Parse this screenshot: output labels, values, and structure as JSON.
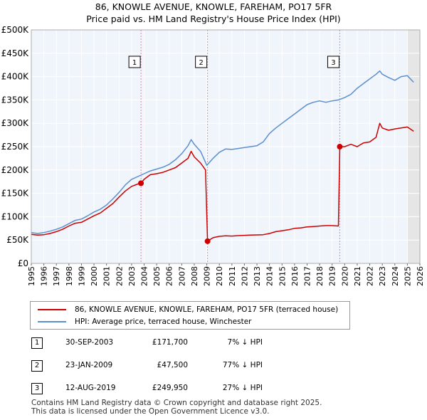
{
  "title": {
    "line1": "86, KNOWLE AVENUE, KNOWLE, FAREHAM, PO17 5FR",
    "line2": "Price paid vs. HM Land Registry's House Price Index (HPI)"
  },
  "chart_data": {
    "type": "line",
    "title": "86, KNOWLE AVENUE, KNOWLE, FAREHAM, PO17 5FR — Price paid vs. HM Land Registry's House Price Index (HPI)",
    "xlabel": "",
    "ylabel": "",
    "xlim": [
      1995,
      2026
    ],
    "ylim": [
      0,
      500000
    ],
    "grid": true,
    "y_ticks": [
      0,
      50000,
      100000,
      150000,
      200000,
      250000,
      300000,
      350000,
      400000,
      450000,
      500000
    ],
    "y_tick_labels": [
      "£0",
      "£50K",
      "£100K",
      "£150K",
      "£200K",
      "£250K",
      "£300K",
      "£350K",
      "£400K",
      "£450K",
      "£500K"
    ],
    "x_ticks": [
      1995,
      1996,
      1997,
      1998,
      1999,
      2000,
      2001,
      2002,
      2003,
      2004,
      2005,
      2006,
      2007,
      2008,
      2009,
      2010,
      2011,
      2012,
      2013,
      2014,
      2015,
      2016,
      2017,
      2018,
      2019,
      2020,
      2021,
      2022,
      2023,
      2024,
      2025,
      2026
    ],
    "x_tick_labels": [
      "1995",
      "1996",
      "1997",
      "1998",
      "1999",
      "2000",
      "2001",
      "2002",
      "2003",
      "2004",
      "2005",
      "2006",
      "2007",
      "2008",
      "2009",
      "2010",
      "2011",
      "2012",
      "2013",
      "2014",
      "2015",
      "2016",
      "2017",
      "2018",
      "2019",
      "2020",
      "2021",
      "2022",
      "2023",
      "2024",
      "2025",
      "2026"
    ],
    "series": [
      {
        "name": "86, KNOWLE AVENUE, KNOWLE, FAREHAM, PO17 5FR (terraced house)",
        "color": "#cc0000",
        "x": [
          1995.0,
          1995.5,
          1996.0,
          1996.5,
          1997.0,
          1997.5,
          1998.0,
          1998.5,
          1999.0,
          1999.5,
          2000.0,
          2000.5,
          2001.0,
          2001.5,
          2002.0,
          2002.5,
          2003.0,
          2003.5,
          2003.75,
          2004.0,
          2004.5,
          2005.0,
          2005.5,
          2006.0,
          2006.5,
          2007.0,
          2007.5,
          2007.75,
          2008.0,
          2008.5,
          2008.9,
          2009.06,
          2009.5,
          2010.0,
          2010.5,
          2011.0,
          2011.5,
          2012.0,
          2012.5,
          2013.0,
          2013.5,
          2014.0,
          2014.5,
          2015.0,
          2015.5,
          2016.0,
          2016.5,
          2017.0,
          2017.5,
          2018.0,
          2018.5,
          2019.0,
          2019.5,
          2019.61,
          2020.0,
          2020.5,
          2021.0,
          2021.5,
          2022.0,
          2022.5,
          2022.8,
          2023.0,
          2023.5,
          2024.0,
          2024.5,
          2025.0,
          2025.5
        ],
        "values": [
          62000,
          60500,
          61500,
          64000,
          68000,
          73000,
          80000,
          86000,
          88000,
          95000,
          102000,
          108000,
          118000,
          128000,
          142000,
          155000,
          165000,
          170000,
          171700,
          180000,
          190000,
          192000,
          195000,
          200000,
          205000,
          215000,
          225000,
          240000,
          228000,
          215000,
          200000,
          47500,
          55000,
          58000,
          59000,
          58500,
          59500,
          60000,
          60500,
          61000,
          61500,
          64000,
          68000,
          70000,
          72000,
          75000,
          76000,
          78000,
          79000,
          80000,
          81000,
          81000,
          80000,
          249950,
          250000,
          255000,
          250000,
          258000,
          260000,
          270000,
          300000,
          290000,
          285000,
          288000,
          290000,
          292000,
          283000
        ]
      },
      {
        "name": "HPI: Average price, terraced house, Winchester",
        "color": "#5b8fd0",
        "x": [
          1995.0,
          1995.5,
          1996.0,
          1996.5,
          1997.0,
          1997.5,
          1998.0,
          1998.5,
          1999.0,
          1999.5,
          2000.0,
          2000.5,
          2001.0,
          2001.5,
          2002.0,
          2002.5,
          2003.0,
          2003.5,
          2004.0,
          2004.5,
          2005.0,
          2005.5,
          2006.0,
          2006.5,
          2007.0,
          2007.5,
          2007.75,
          2008.0,
          2008.5,
          2009.0,
          2009.5,
          2010.0,
          2010.5,
          2011.0,
          2011.5,
          2012.0,
          2012.5,
          2013.0,
          2013.5,
          2014.0,
          2014.5,
          2015.0,
          2015.5,
          2016.0,
          2016.5,
          2017.0,
          2017.5,
          2018.0,
          2018.5,
          2019.0,
          2019.5,
          2020.0,
          2020.5,
          2021.0,
          2021.5,
          2022.0,
          2022.5,
          2022.8,
          2023.0,
          2023.5,
          2024.0,
          2024.5,
          2025.0,
          2025.5
        ],
        "values": [
          66000,
          64000,
          66000,
          69000,
          73000,
          78000,
          85000,
          92000,
          95000,
          102000,
          110000,
          116000,
          125000,
          138000,
          152000,
          168000,
          180000,
          186000,
          192000,
          198000,
          202000,
          206000,
          212000,
          222000,
          235000,
          252000,
          265000,
          255000,
          240000,
          210000,
          225000,
          238000,
          245000,
          244000,
          246000,
          248000,
          250000,
          252000,
          260000,
          278000,
          290000,
          300000,
          310000,
          320000,
          330000,
          340000,
          345000,
          348000,
          345000,
          348000,
          350000,
          355000,
          362000,
          375000,
          385000,
          395000,
          405000,
          412000,
          405000,
          398000,
          392000,
          400000,
          402000,
          388000
        ]
      }
    ],
    "sales": [
      {
        "label": "1",
        "x": 2003.75,
        "value": 171700
      },
      {
        "label": "2",
        "x": 2009.06,
        "value": 47500
      },
      {
        "label": "3",
        "x": 2019.61,
        "value": 249950
      }
    ],
    "shaded_x_range": [
      2025.0,
      2026.0
    ]
  },
  "legend": {
    "items": [
      {
        "label": "86, KNOWLE AVENUE, KNOWLE, FAREHAM, PO17 5FR (terraced house)",
        "color": "#cc0000"
      },
      {
        "label": "HPI: Average price, terraced house, Winchester",
        "color": "#5b8fd0"
      }
    ]
  },
  "table": {
    "rows": [
      {
        "num": "1",
        "date": "30-SEP-2003",
        "price": "£171,700",
        "hpi": "7% ↓ HPI"
      },
      {
        "num": "2",
        "date": "23-JAN-2009",
        "price": "£47,500",
        "hpi": "77% ↓ HPI"
      },
      {
        "num": "3",
        "date": "12-AUG-2019",
        "price": "£249,950",
        "hpi": "27% ↓ HPI"
      }
    ]
  },
  "footer": {
    "line1": "Contains HM Land Registry data © Crown copyright and database right 2025.",
    "line2": "This data is licensed under the Open Government Licence v3.0."
  }
}
